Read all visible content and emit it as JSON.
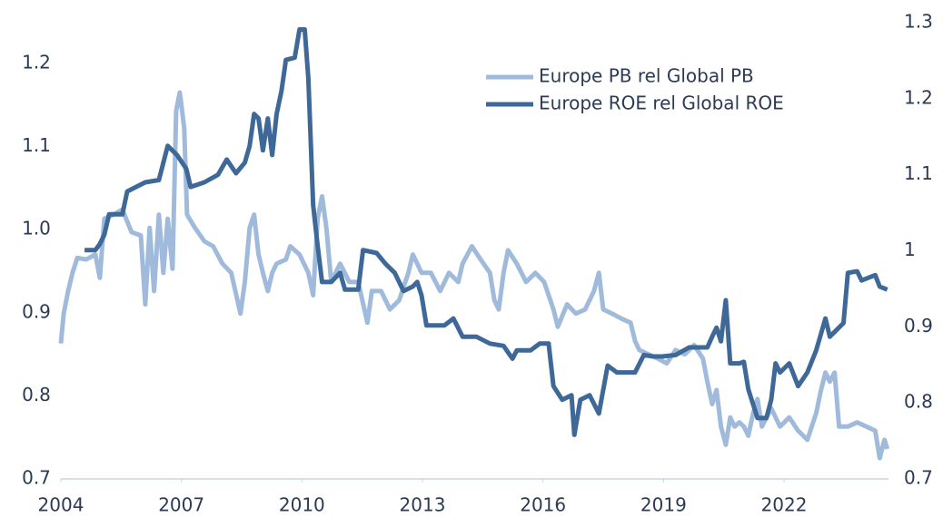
{
  "chart_data": {
    "type": "line",
    "xlim": [
      2004,
      2024.6
    ],
    "xticks": [
      2004,
      2007,
      2010,
      2013,
      2016,
      2019,
      2022
    ],
    "ylim": [
      0.7,
      1.249
    ],
    "yticks": [
      0.7,
      0.8,
      0.9,
      {
        "value": 1,
        "label": "1.0"
      },
      1.1,
      1.2
    ],
    "y2lim": [
      0.7,
      1.3
    ],
    "y2ticks": [
      0.7,
      0.8,
      0.9,
      1,
      1.1,
      1.2,
      1.3
    ],
    "legend": "top-right",
    "series": [
      {
        "name": "Europe PB rel Global PB",
        "color": "#9fbadb",
        "axis": "y",
        "x": [
          2004.0,
          2004.07,
          2004.18,
          2004.29,
          2004.41,
          2004.63,
          2004.86,
          2004.97,
          2005.08,
          2005.31,
          2005.53,
          2005.76,
          2005.99,
          2006.1,
          2006.21,
          2006.32,
          2006.44,
          2006.55,
          2006.66,
          2006.78,
          2006.87,
          2006.96,
          2007.07,
          2007.14,
          2007.34,
          2007.57,
          2007.79,
          2008.02,
          2008.24,
          2008.47,
          2008.58,
          2008.7,
          2008.81,
          2008.92,
          2009.03,
          2009.15,
          2009.26,
          2009.37,
          2009.6,
          2009.71,
          2009.94,
          2010.16,
          2010.28,
          2010.39,
          2010.5,
          2010.61,
          2010.73,
          2010.95,
          2011.18,
          2011.4,
          2011.63,
          2011.74,
          2011.97,
          2012.19,
          2012.42,
          2012.65,
          2012.76,
          2012.98,
          2013.21,
          2013.44,
          2013.66,
          2013.89,
          2014.0,
          2014.23,
          2014.45,
          2014.68,
          2014.79,
          2014.9,
          2015.02,
          2015.13,
          2015.35,
          2015.58,
          2015.81,
          2016.03,
          2016.26,
          2016.37,
          2016.6,
          2016.82,
          2017.05,
          2017.27,
          2017.39,
          2017.5,
          2017.72,
          2017.95,
          2018.18,
          2018.29,
          2018.4,
          2018.63,
          2018.85,
          2019.08,
          2019.3,
          2019.53,
          2019.76,
          2019.98,
          2020.09,
          2020.21,
          2020.32,
          2020.43,
          2020.55,
          2020.66,
          2020.77,
          2020.89,
          2021.0,
          2021.11,
          2021.23,
          2021.34,
          2021.45,
          2021.68,
          2021.9,
          2022.13,
          2022.35,
          2022.58,
          2022.69,
          2022.8,
          2022.92,
          2023.03,
          2023.14,
          2023.26,
          2023.37,
          2023.59,
          2023.82,
          2024.05,
          2024.27,
          2024.38,
          2024.5,
          2024.57
        ],
        "values": [
          0.863,
          0.899,
          0.926,
          0.948,
          0.966,
          0.964,
          0.97,
          0.942,
          1.013,
          1.018,
          1.024,
          0.997,
          0.993,
          0.91,
          1.002,
          0.926,
          1.018,
          0.948,
          1.013,
          0.953,
          1.143,
          1.165,
          1.122,
          1.018,
          1.002,
          0.986,
          0.98,
          0.959,
          0.948,
          0.899,
          0.937,
          1.002,
          1.018,
          0.97,
          0.948,
          0.926,
          0.948,
          0.959,
          0.964,
          0.98,
          0.97,
          0.948,
          0.921,
          1.013,
          1.04,
          1.002,
          0.937,
          0.959,
          0.937,
          0.937,
          0.888,
          0.926,
          0.926,
          0.904,
          0.915,
          0.948,
          0.97,
          0.948,
          0.948,
          0.926,
          0.948,
          0.937,
          0.959,
          0.98,
          0.964,
          0.948,
          0.915,
          0.904,
          0.948,
          0.975,
          0.959,
          0.937,
          0.948,
          0.937,
          0.904,
          0.883,
          0.91,
          0.899,
          0.904,
          0.926,
          0.948,
          0.904,
          0.899,
          0.893,
          0.888,
          0.866,
          0.855,
          0.85,
          0.845,
          0.839,
          0.855,
          0.85,
          0.861,
          0.845,
          0.817,
          0.79,
          0.807,
          0.763,
          0.741,
          0.774,
          0.763,
          0.768,
          0.763,
          0.752,
          0.779,
          0.796,
          0.763,
          0.785,
          0.763,
          0.774,
          0.758,
          0.747,
          0.763,
          0.779,
          0.807,
          0.828,
          0.817,
          0.828,
          0.763,
          0.763,
          0.768,
          0.763,
          0.758,
          0.725,
          0.747,
          0.736
        ]
      },
      {
        "name": "Europe ROE rel Global ROE",
        "color": "#3e6897",
        "axis": "y2",
        "x": [
          2004.59,
          2004.86,
          2004.97,
          2005.08,
          2005.2,
          2005.53,
          2005.65,
          2005.87,
          2006.1,
          2006.44,
          2006.66,
          2006.89,
          2007.12,
          2007.23,
          2007.57,
          2007.91,
          2008.13,
          2008.36,
          2008.58,
          2008.7,
          2008.81,
          2008.92,
          2009.03,
          2009.15,
          2009.26,
          2009.37,
          2009.49,
          2009.6,
          2009.82,
          2009.94,
          2010.07,
          2010.16,
          2010.28,
          2010.39,
          2010.5,
          2010.73,
          2010.95,
          2011.07,
          2011.4,
          2011.52,
          2011.86,
          2012.08,
          2012.31,
          2012.53,
          2012.76,
          2012.87,
          2012.98,
          2013.1,
          2013.55,
          2013.77,
          2014.0,
          2014.34,
          2014.68,
          2015.02,
          2015.24,
          2015.35,
          2015.69,
          2015.92,
          2016.14,
          2016.26,
          2016.48,
          2016.71,
          2016.78,
          2016.93,
          2017.16,
          2017.39,
          2017.61,
          2017.84,
          2018.29,
          2018.51,
          2018.74,
          2018.97,
          2019.3,
          2019.64,
          2020.09,
          2020.21,
          2020.32,
          2020.43,
          2020.55,
          2020.66,
          2020.89,
          2021.0,
          2021.11,
          2021.34,
          2021.56,
          2021.68,
          2021.79,
          2021.9,
          2022.13,
          2022.35,
          2022.58,
          2022.8,
          2023.03,
          2023.14,
          2023.48,
          2023.59,
          2023.82,
          2023.93,
          2024.27,
          2024.38,
          2024.57
        ],
        "values": [
          1.001,
          1.001,
          1.009,
          1.021,
          1.048,
          1.048,
          1.078,
          1.084,
          1.09,
          1.093,
          1.138,
          1.126,
          1.108,
          1.084,
          1.09,
          1.1,
          1.12,
          1.102,
          1.116,
          1.138,
          1.18,
          1.174,
          1.132,
          1.174,
          1.126,
          1.18,
          1.21,
          1.251,
          1.254,
          1.291,
          1.291,
          1.227,
          1.06,
          1.007,
          0.959,
          0.959,
          0.971,
          0.949,
          0.949,
          1.001,
          0.997,
          0.983,
          0.971,
          0.947,
          0.953,
          0.959,
          0.941,
          0.902,
          0.902,
          0.911,
          0.887,
          0.887,
          0.878,
          0.875,
          0.858,
          0.869,
          0.869,
          0.878,
          0.878,
          0.822,
          0.804,
          0.81,
          0.758,
          0.804,
          0.81,
          0.786,
          0.849,
          0.84,
          0.84,
          0.863,
          0.861,
          0.861,
          0.863,
          0.873,
          0.873,
          0.887,
          0.899,
          0.881,
          0.935,
          0.852,
          0.852,
          0.854,
          0.818,
          0.78,
          0.78,
          0.804,
          0.852,
          0.84,
          0.852,
          0.822,
          0.84,
          0.869,
          0.911,
          0.887,
          0.905,
          0.971,
          0.973,
          0.961,
          0.968,
          0.953,
          0.949
        ]
      }
    ]
  }
}
